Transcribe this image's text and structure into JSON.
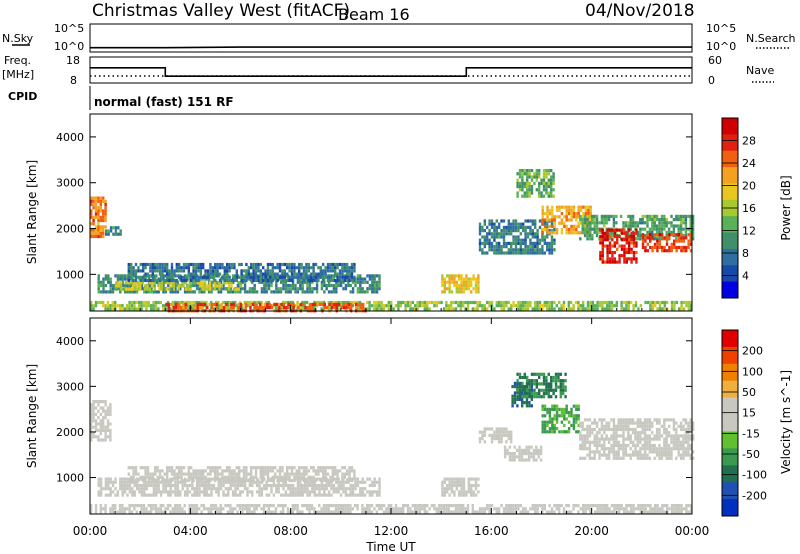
{
  "header": {
    "title": "Christmas Valley West (fitACF)",
    "beam": "Beam 16",
    "date": "04/Nov/2018"
  },
  "top_panels": {
    "nsky_label": "N.Sky",
    "nsky_ticks": [
      "10^5",
      "10^0"
    ],
    "nsearch_label": "N.Search",
    "nsearch_ticks": [
      "10^5",
      "10^0"
    ],
    "freq_label": "Freq.",
    "freq_unit": "[MHz]",
    "freq_ticks": [
      "18",
      "8"
    ],
    "nave_label": "Nave",
    "nave_ticks": [
      "60",
      "0"
    ],
    "cpid_label": "CPID",
    "cpid_text": "normal (fast) 151 RF"
  },
  "colors": {
    "power_scale": [
      "#0000e0",
      "#1848a8",
      "#2e6fa0",
      "#3f8f68",
      "#58b058",
      "#a8c830",
      "#e8c820",
      "#f4a020",
      "#f06010",
      "#e02010",
      "#d00000"
    ],
    "velocity_scale": [
      "#e00000",
      "#f04000",
      "#f08000",
      "#f0b040",
      "#c8c8c0",
      "#c8c8c0",
      "#60c030",
      "#3a9a50",
      "#207050",
      "#2050b0",
      "#0030c0"
    ]
  },
  "chart_data": [
    {
      "type": "line",
      "title": "N.Sky / N.Search",
      "x_range": [
        "00:00",
        "24:00"
      ],
      "y_scale": "log",
      "ylim": [
        1,
        100000
      ],
      "series": [
        {
          "name": "N.Sky",
          "x": [
            "00:00",
            "03:00",
            "06:00",
            "09:00",
            "12:00",
            "15:00",
            "18:00",
            "21:00",
            "24:00"
          ],
          "values": [
            3,
            3,
            4,
            4,
            4,
            4,
            4,
            4,
            4
          ]
        },
        {
          "name": "N.Search",
          "x": [
            "00:00",
            "24:00"
          ],
          "values": [
            1,
            1
          ]
        }
      ]
    },
    {
      "type": "line",
      "title": "Freq. / Nave",
      "x_range": [
        "00:00",
        "24:00"
      ],
      "ylim": [
        8,
        18
      ],
      "series": [
        {
          "name": "Freq.",
          "x": [
            "00:00",
            "03:00",
            "03:00",
            "15:00",
            "15:00",
            "24:00"
          ],
          "values": [
            14.6,
            14.6,
            10.4,
            10.4,
            14.6,
            14.6
          ]
        },
        {
          "name": "Nave",
          "x": [
            "00:00",
            "24:00"
          ],
          "values": [
            15,
            15
          ]
        }
      ]
    },
    {
      "type": "heatmap",
      "title": "Power",
      "xlabel": "Time UT",
      "ylabel": "Slant Range [km]",
      "xticks": [
        "00:00",
        "04:00",
        "08:00",
        "12:00",
        "16:00",
        "20:00",
        "00:00"
      ],
      "yticks": [
        "1000",
        "2000",
        "3000",
        "4000"
      ],
      "ylim": [
        200,
        4500
      ],
      "colorbar": {
        "label": "Power [dB]",
        "ticks": [
          "4",
          "8",
          "12",
          "16",
          "20",
          "24",
          "28"
        ],
        "range": [
          0,
          30
        ]
      },
      "regions": [
        {
          "t0": 0.0,
          "t1": 0.6,
          "r0": 1800,
          "r1": 2700,
          "value": 22
        },
        {
          "t0": 0.6,
          "t1": 1.2,
          "r0": 1900,
          "r1": 2050,
          "value": 9
        },
        {
          "t0": 0.3,
          "t1": 11.5,
          "r0": 600,
          "r1": 1000,
          "value": 9
        },
        {
          "t0": 1.0,
          "t1": 6.0,
          "r0": 650,
          "r1": 850,
          "value": 16
        },
        {
          "t0": 1.5,
          "t1": 10.5,
          "r0": 900,
          "r1": 1250,
          "value": 7
        },
        {
          "t0": 0.0,
          "t1": 24.0,
          "r0": 220,
          "r1": 420,
          "value": 14
        },
        {
          "t0": 3.0,
          "t1": 11.0,
          "r0": 240,
          "r1": 380,
          "value": 24
        },
        {
          "t0": 14.0,
          "t1": 15.5,
          "r0": 600,
          "r1": 1000,
          "value": 18
        },
        {
          "t0": 15.5,
          "t1": 18.5,
          "r0": 1450,
          "r1": 2200,
          "value": 8
        },
        {
          "t0": 17.0,
          "t1": 18.5,
          "r0": 2700,
          "r1": 3300,
          "value": 12
        },
        {
          "t0": 18.0,
          "t1": 20.0,
          "r0": 1900,
          "r1": 2500,
          "value": 20
        },
        {
          "t0": 19.5,
          "t1": 24.0,
          "r0": 1800,
          "r1": 2300,
          "value": 11
        },
        {
          "t0": 20.3,
          "t1": 21.8,
          "r0": 1300,
          "r1": 2000,
          "value": 27
        },
        {
          "t0": 22.0,
          "t1": 24.0,
          "r0": 1500,
          "r1": 1900,
          "value": 25
        }
      ]
    },
    {
      "type": "heatmap",
      "title": "Velocity",
      "xlabel": "Time UT",
      "ylabel": "Slant Range [km]",
      "xticks": [
        "00:00",
        "04:00",
        "08:00",
        "12:00",
        "16:00",
        "20:00",
        "00:00"
      ],
      "yticks": [
        "1000",
        "2000",
        "3000",
        "4000"
      ],
      "ylim": [
        200,
        4500
      ],
      "colorbar": {
        "label": "Velocity [m s^-1]",
        "ticks": [
          "200",
          "100",
          "50",
          "15",
          "-15",
          "-50",
          "-100",
          "-200"
        ],
        "range": [
          -250,
          250
        ]
      },
      "regions": [
        {
          "t0": 0.0,
          "t1": 0.8,
          "r0": 1800,
          "r1": 2700,
          "value": 0
        },
        {
          "t0": 0.3,
          "t1": 11.5,
          "r0": 600,
          "r1": 1000,
          "value": 30
        },
        {
          "t0": 1.5,
          "t1": 10.5,
          "r0": 900,
          "r1": 1250,
          "value": 0
        },
        {
          "t0": 0.0,
          "t1": 24.0,
          "r0": 220,
          "r1": 420,
          "value": 25
        },
        {
          "t0": 14.0,
          "t1": 15.5,
          "r0": 600,
          "r1": 1000,
          "value": 30
        },
        {
          "t0": 15.5,
          "t1": 16.8,
          "r0": 1800,
          "r1": 2100,
          "value": 30
        },
        {
          "t0": 16.8,
          "t1": 17.6,
          "r0": 2600,
          "r1": 3100,
          "value": -150
        },
        {
          "t0": 17.0,
          "t1": 19.0,
          "r0": 2800,
          "r1": 3300,
          "value": -120
        },
        {
          "t0": 18.0,
          "t1": 19.5,
          "r0": 2000,
          "r1": 2600,
          "value": -80
        },
        {
          "t0": 19.5,
          "t1": 24.0,
          "r0": 1400,
          "r1": 2300,
          "value": 0
        },
        {
          "t0": 16.5,
          "t1": 18.0,
          "r0": 1400,
          "r1": 1700,
          "value": 0
        }
      ]
    }
  ]
}
